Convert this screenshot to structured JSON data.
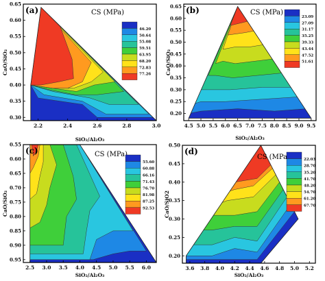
{
  "chart_data": [
    {
      "type": "heatmap",
      "panel_label": "(a)",
      "title": "CS (MPa)",
      "xlabel": "SiO₂/Al₂O₃",
      "ylabel": "CaO/SiO₂",
      "xlim": [
        2.1,
        3.0
      ],
      "ylim": [
        0.29,
        0.65
      ],
      "xticks": [
        "2.2",
        "2.4",
        "2.6",
        "2.8",
        "3.0"
      ],
      "xtick_values": [
        2.2,
        2.4,
        2.6,
        2.8,
        3.0
      ],
      "yticks": [
        "0.65",
        "0.60",
        "0.55",
        "0.50",
        "0.45",
        "0.40",
        "0.35",
        "0.30"
      ],
      "ytick_values": [
        0.65,
        0.6,
        0.55,
        0.5,
        0.45,
        0.4,
        0.35,
        0.3
      ],
      "legend_values": [
        "46.20",
        "50.64",
        "55.08",
        "59.51",
        "63.95",
        "68.20",
        "72.83",
        "77.26"
      ],
      "level_colors": [
        "#1a2fc4",
        "#1e88e5",
        "#29c6e0",
        "#26c39a",
        "#3fcf3a",
        "#c8dc1e",
        "#ffe21a",
        "#ff9a1f",
        "#ef3a24"
      ],
      "region": [
        [
          2.15,
          0.4
        ],
        [
          2.22,
          0.64
        ],
        [
          3.0,
          0.29
        ],
        [
          2.15,
          0.29
        ]
      ],
      "bands": [
        [
          [
            2.15,
            0.4
          ],
          [
            2.22,
            0.64
          ],
          [
            3.0,
            0.29
          ],
          [
            2.15,
            0.29
          ]
        ],
        [
          [
            2.15,
            0.4
          ],
          [
            2.22,
            0.64
          ],
          [
            2.98,
            0.3
          ],
          [
            2.6,
            0.3
          ],
          [
            2.5,
            0.34
          ],
          [
            2.2,
            0.36
          ]
        ],
        [
          [
            2.15,
            0.4
          ],
          [
            2.22,
            0.64
          ],
          [
            2.95,
            0.31
          ],
          [
            2.66,
            0.31
          ],
          [
            2.5,
            0.35
          ],
          [
            2.24,
            0.37
          ]
        ],
        [
          [
            2.15,
            0.4
          ],
          [
            2.22,
            0.64
          ],
          [
            2.88,
            0.34
          ],
          [
            2.68,
            0.34
          ],
          [
            2.55,
            0.36
          ],
          [
            2.3,
            0.38
          ]
        ],
        [
          [
            2.15,
            0.4
          ],
          [
            2.22,
            0.64
          ],
          [
            2.78,
            0.38
          ],
          [
            2.6,
            0.37
          ],
          [
            2.45,
            0.37
          ],
          [
            2.28,
            0.385
          ]
        ],
        [
          [
            2.15,
            0.4
          ],
          [
            2.22,
            0.64
          ],
          [
            2.72,
            0.41
          ],
          [
            2.58,
            0.4
          ],
          [
            2.46,
            0.38
          ],
          [
            2.3,
            0.39
          ]
        ],
        [
          [
            2.15,
            0.4
          ],
          [
            2.22,
            0.64
          ],
          [
            2.64,
            0.44
          ],
          [
            2.56,
            0.41
          ],
          [
            2.44,
            0.39
          ],
          [
            2.3,
            0.39
          ]
        ],
        [
          [
            2.15,
            0.4
          ],
          [
            2.22,
            0.64
          ],
          [
            2.56,
            0.47
          ],
          [
            2.5,
            0.41
          ],
          [
            2.4,
            0.39
          ],
          [
            2.3,
            0.39
          ]
        ],
        [
          [
            2.15,
            0.4
          ],
          [
            2.22,
            0.64
          ],
          [
            2.35,
            0.58
          ],
          [
            2.43,
            0.48
          ],
          [
            2.44,
            0.42
          ],
          [
            2.34,
            0.41
          ],
          [
            2.22,
            0.4
          ]
        ]
      ]
    },
    {
      "type": "heatmap",
      "panel_label": "(b)",
      "title": "CS (MPa)",
      "xlabel": "SiO₂/Al₂O₃",
      "ylabel": "CaO/SiO₂",
      "xlim": [
        4.3,
        9.7
      ],
      "ylim": [
        0.17,
        0.66
      ],
      "xticks": [
        "4.5",
        "5.0",
        "5.5",
        "6.0",
        "6.5",
        "7.0",
        "7.5",
        "8.0",
        "8.5",
        "9.0",
        "9.5"
      ],
      "xtick_values": [
        4.5,
        5.0,
        5.5,
        6.0,
        6.5,
        7.0,
        7.5,
        8.0,
        8.5,
        9.0,
        9.5
      ],
      "yticks": [
        "0.65",
        "0.60",
        "0.55",
        "0.50",
        "0.45",
        "0.40",
        "0.35",
        "0.30",
        "0.25",
        "0.20"
      ],
      "ytick_values": [
        0.65,
        0.6,
        0.55,
        0.5,
        0.45,
        0.4,
        0.35,
        0.3,
        0.25,
        0.2
      ],
      "legend_values": [
        "23.09",
        "27.09",
        "31.17",
        "35.25",
        "39.33",
        "43.44",
        "47.52",
        "51.61"
      ],
      "level_colors": [
        "#1a2fc4",
        "#1e88e5",
        "#29c6e0",
        "#26c39a",
        "#3fcf3a",
        "#c8dc1e",
        "#ffe21a",
        "#ff9a1f",
        "#ef3a24"
      ],
      "region": [
        [
          4.5,
          0.18
        ],
        [
          6.5,
          0.65
        ],
        [
          9.5,
          0.18
        ]
      ],
      "bands": [
        [
          [
            4.5,
            0.18
          ],
          [
            6.5,
            0.65
          ],
          [
            9.5,
            0.18
          ]
        ],
        [
          [
            4.5,
            0.2
          ],
          [
            6.5,
            0.65
          ],
          [
            9.3,
            0.22
          ],
          [
            8.0,
            0.21
          ],
          [
            6.5,
            0.22
          ],
          [
            5.0,
            0.21
          ]
        ],
        [
          [
            4.7,
            0.24
          ],
          [
            6.5,
            0.65
          ],
          [
            9.0,
            0.27
          ],
          [
            7.5,
            0.26
          ],
          [
            6.0,
            0.25
          ],
          [
            5.0,
            0.25
          ]
        ],
        [
          [
            5.0,
            0.3
          ],
          [
            6.5,
            0.65
          ],
          [
            8.7,
            0.31
          ],
          [
            7.5,
            0.31
          ],
          [
            6.2,
            0.3
          ],
          [
            5.3,
            0.3
          ]
        ],
        [
          [
            5.3,
            0.36
          ],
          [
            6.5,
            0.65
          ],
          [
            8.3,
            0.37
          ],
          [
            7.3,
            0.36
          ],
          [
            6.3,
            0.35
          ],
          [
            5.6,
            0.36
          ]
        ],
        [
          [
            5.6,
            0.41
          ],
          [
            6.5,
            0.65
          ],
          [
            8.0,
            0.43
          ],
          [
            7.2,
            0.42
          ],
          [
            6.4,
            0.41
          ],
          [
            5.9,
            0.42
          ]
        ],
        [
          [
            5.9,
            0.47
          ],
          [
            6.5,
            0.65
          ],
          [
            7.6,
            0.49
          ],
          [
            7.0,
            0.48
          ],
          [
            6.4,
            0.48
          ]
        ],
        [
          [
            6.1,
            0.53
          ],
          [
            6.5,
            0.65
          ],
          [
            7.3,
            0.55
          ],
          [
            6.8,
            0.54
          ]
        ],
        [
          [
            6.2,
            0.57
          ],
          [
            6.5,
            0.65
          ],
          [
            7.0,
            0.59
          ],
          [
            6.6,
            0.58
          ]
        ]
      ]
    },
    {
      "type": "heatmap",
      "panel_label": "(c)",
      "title": "CS (MPa)",
      "xlabel": "SiO₂/Al₂O₃",
      "ylabel": "CaO/SiO₂",
      "xlim": [
        2.3,
        6.3
      ],
      "ylim": [
        0.96,
        0.55
      ],
      "xticks": [
        "2.5",
        "3.0",
        "3.5",
        "4.0",
        "4.5",
        "5.0",
        "5.5",
        "6.0"
      ],
      "xtick_values": [
        2.5,
        3.0,
        3.5,
        4.0,
        4.5,
        5.0,
        5.5,
        6.0
      ],
      "yticks": [
        "0.55",
        "0.60",
        "0.65",
        "0.70",
        "0.75",
        "0.80",
        "0.85",
        "0.90",
        "0.95"
      ],
      "ytick_values": [
        0.55,
        0.6,
        0.65,
        0.7,
        0.75,
        0.8,
        0.85,
        0.9,
        0.95
      ],
      "legend_values": [
        "55.60",
        "60.88",
        "66.16",
        "71.43",
        "76.70",
        "81.98",
        "87.25",
        "92.53"
      ],
      "level_colors": [
        "#1a2fc4",
        "#1e88e5",
        "#29c6e0",
        "#26c39a",
        "#3fcf3a",
        "#c8dc1e",
        "#ffe21a",
        "#ff9a1f",
        "#ef3a24"
      ],
      "region": [
        [
          2.5,
          0.55
        ],
        [
          4.0,
          0.55
        ],
        [
          6.3,
          0.96
        ],
        [
          2.5,
          0.96
        ]
      ],
      "bands": [
        [
          [
            2.5,
            0.55
          ],
          [
            4.0,
            0.55
          ],
          [
            6.3,
            0.96
          ],
          [
            2.5,
            0.96
          ]
        ],
        [
          [
            2.5,
            0.55
          ],
          [
            4.0,
            0.55
          ],
          [
            6.0,
            0.92
          ],
          [
            5.5,
            0.92
          ],
          [
            5.0,
            0.93
          ],
          [
            4.4,
            0.95
          ],
          [
            2.5,
            0.95
          ]
        ],
        [
          [
            2.5,
            0.55
          ],
          [
            4.0,
            0.55
          ],
          [
            5.6,
            0.85
          ],
          [
            5.0,
            0.85
          ],
          [
            4.5,
            0.88
          ],
          [
            4.3,
            0.95
          ],
          [
            2.5,
            0.95
          ]
        ],
        [
          [
            2.5,
            0.55
          ],
          [
            3.9,
            0.55
          ],
          [
            4.6,
            0.73
          ],
          [
            4.3,
            0.78
          ],
          [
            4.2,
            0.85
          ],
          [
            4.1,
            0.93
          ],
          [
            2.5,
            0.93
          ]
        ],
        [
          [
            2.5,
            0.55
          ],
          [
            3.5,
            0.55
          ],
          [
            3.8,
            0.66
          ],
          [
            3.9,
            0.74
          ],
          [
            3.6,
            0.8
          ],
          [
            3.5,
            0.9
          ],
          [
            2.5,
            0.9
          ]
        ],
        [
          [
            2.5,
            0.55
          ],
          [
            3.1,
            0.55
          ],
          [
            3.3,
            0.62
          ],
          [
            3.1,
            0.7
          ],
          [
            3.0,
            0.76
          ],
          [
            2.8,
            0.82
          ],
          [
            2.5,
            0.84
          ]
        ],
        [
          [
            2.5,
            0.55
          ],
          [
            2.9,
            0.55
          ],
          [
            2.9,
            0.61
          ],
          [
            2.8,
            0.66
          ],
          [
            2.7,
            0.72
          ],
          [
            2.5,
            0.74
          ]
        ],
        [
          [
            2.5,
            0.55
          ],
          [
            2.8,
            0.55
          ],
          [
            2.75,
            0.59
          ],
          [
            2.6,
            0.63
          ],
          [
            2.5,
            0.65
          ]
        ],
        [
          [
            2.55,
            0.55
          ],
          [
            2.75,
            0.55
          ],
          [
            2.7,
            0.57
          ],
          [
            2.6,
            0.59
          ]
        ]
      ]
    },
    {
      "type": "heatmap",
      "panel_label": "(d)",
      "title": "CS (MPa)",
      "xlabel": "SiO₂/Al₂O₃",
      "ylabel": "CaO/SiO2",
      "xlim": [
        3.5,
        5.28
      ],
      "ylim": [
        0.18,
        0.5
      ],
      "xticks": [
        "3.6",
        "3.8",
        "4.0",
        "4.2",
        "4.4",
        "4.6",
        "4.8",
        "5.0",
        "5.2"
      ],
      "xtick_values": [
        3.6,
        3.8,
        4.0,
        4.2,
        4.4,
        4.6,
        4.8,
        5.0,
        5.2
      ],
      "yticks": [
        "0.50",
        "0.45",
        "0.40",
        "0.35",
        "0.30",
        "0.25",
        "0.20"
      ],
      "ytick_values": [
        0.5,
        0.45,
        0.4,
        0.35,
        0.3,
        0.25,
        0.2
      ],
      "legend_values": [
        "22.03",
        "28.70",
        "35.20",
        "41.70",
        "48.20",
        "54.70",
        "61.20",
        "67.70"
      ],
      "level_colors": [
        "#1a2fc4",
        "#1e88e5",
        "#29c6e0",
        "#26c39a",
        "#3fcf3a",
        "#c8dc1e",
        "#ffe21a",
        "#ff9a1f",
        "#ef3a24"
      ],
      "region": [
        [
          3.55,
          0.2
        ],
        [
          4.55,
          0.5
        ],
        [
          5.05,
          0.3
        ],
        [
          4.55,
          0.18
        ],
        [
          3.55,
          0.18
        ]
      ],
      "bands": [
        [
          [
            3.55,
            0.2
          ],
          [
            4.55,
            0.5
          ],
          [
            5.05,
            0.3
          ],
          [
            4.55,
            0.18
          ],
          [
            3.55,
            0.18
          ]
        ],
        [
          [
            3.55,
            0.2
          ],
          [
            4.55,
            0.5
          ],
          [
            5.0,
            0.32
          ],
          [
            4.5,
            0.19
          ],
          [
            3.55,
            0.19
          ]
        ],
        [
          [
            3.55,
            0.2
          ],
          [
            4.55,
            0.5
          ],
          [
            4.95,
            0.34
          ],
          [
            4.5,
            0.21
          ],
          [
            4.2,
            0.22
          ],
          [
            3.9,
            0.2
          ],
          [
            3.55,
            0.2
          ]
        ],
        [
          [
            3.55,
            0.2
          ],
          [
            4.55,
            0.5
          ],
          [
            4.9,
            0.36
          ],
          [
            4.5,
            0.24
          ],
          [
            4.2,
            0.25
          ],
          [
            3.9,
            0.23
          ],
          [
            3.6,
            0.23
          ]
        ],
        [
          [
            3.6,
            0.24
          ],
          [
            4.55,
            0.5
          ],
          [
            4.85,
            0.38
          ],
          [
            4.5,
            0.28
          ],
          [
            4.2,
            0.28
          ],
          [
            3.9,
            0.27
          ],
          [
            3.7,
            0.27
          ]
        ],
        [
          [
            3.7,
            0.28
          ],
          [
            4.55,
            0.5
          ],
          [
            4.8,
            0.4
          ],
          [
            4.5,
            0.32
          ],
          [
            4.2,
            0.31
          ],
          [
            3.9,
            0.31
          ]
        ],
        [
          [
            3.85,
            0.33
          ],
          [
            4.55,
            0.5
          ],
          [
            4.75,
            0.42
          ],
          [
            4.45,
            0.36
          ],
          [
            4.1,
            0.35
          ]
        ],
        [
          [
            4.05,
            0.37
          ],
          [
            4.55,
            0.5
          ],
          [
            4.72,
            0.44
          ],
          [
            4.45,
            0.39
          ],
          [
            4.2,
            0.38
          ]
        ],
        [
          [
            4.2,
            0.4
          ],
          [
            4.55,
            0.5
          ],
          [
            4.7,
            0.45
          ],
          [
            4.5,
            0.41
          ]
        ]
      ]
    }
  ]
}
